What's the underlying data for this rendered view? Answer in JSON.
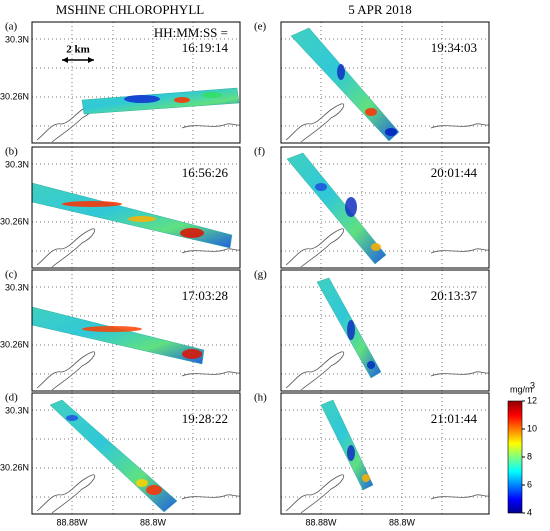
{
  "header": {
    "left_title": "MSHINE CHLOROPHYLL",
    "right_title": "5 APR 2018",
    "time_format": "HH:MM:SS =",
    "scale_bar": "2 km"
  },
  "panels": [
    {
      "label": "(a)",
      "time": "16:19:14"
    },
    {
      "label": "(b)",
      "time": "16:56:26"
    },
    {
      "label": "(c)",
      "time": "17:03:28"
    },
    {
      "label": "(d)",
      "time": "19:28:22"
    },
    {
      "label": "(e)",
      "time": "19:34:03"
    },
    {
      "label": "(f)",
      "time": "20:01:44"
    },
    {
      "label": "(g)",
      "time": "20:13:37"
    },
    {
      "label": "(h)",
      "time": "21:01:44"
    }
  ],
  "axes": {
    "y_labels": [
      "30.3N",
      "30.26N"
    ],
    "x_labels": [
      "88.88W",
      "88.8W"
    ]
  },
  "colorbar": {
    "unit": "mg/m",
    "unit_sup": "3",
    "lim": [
      4,
      12
    ],
    "ticks": [
      4,
      6,
      8,
      10,
      12
    ]
  }
}
